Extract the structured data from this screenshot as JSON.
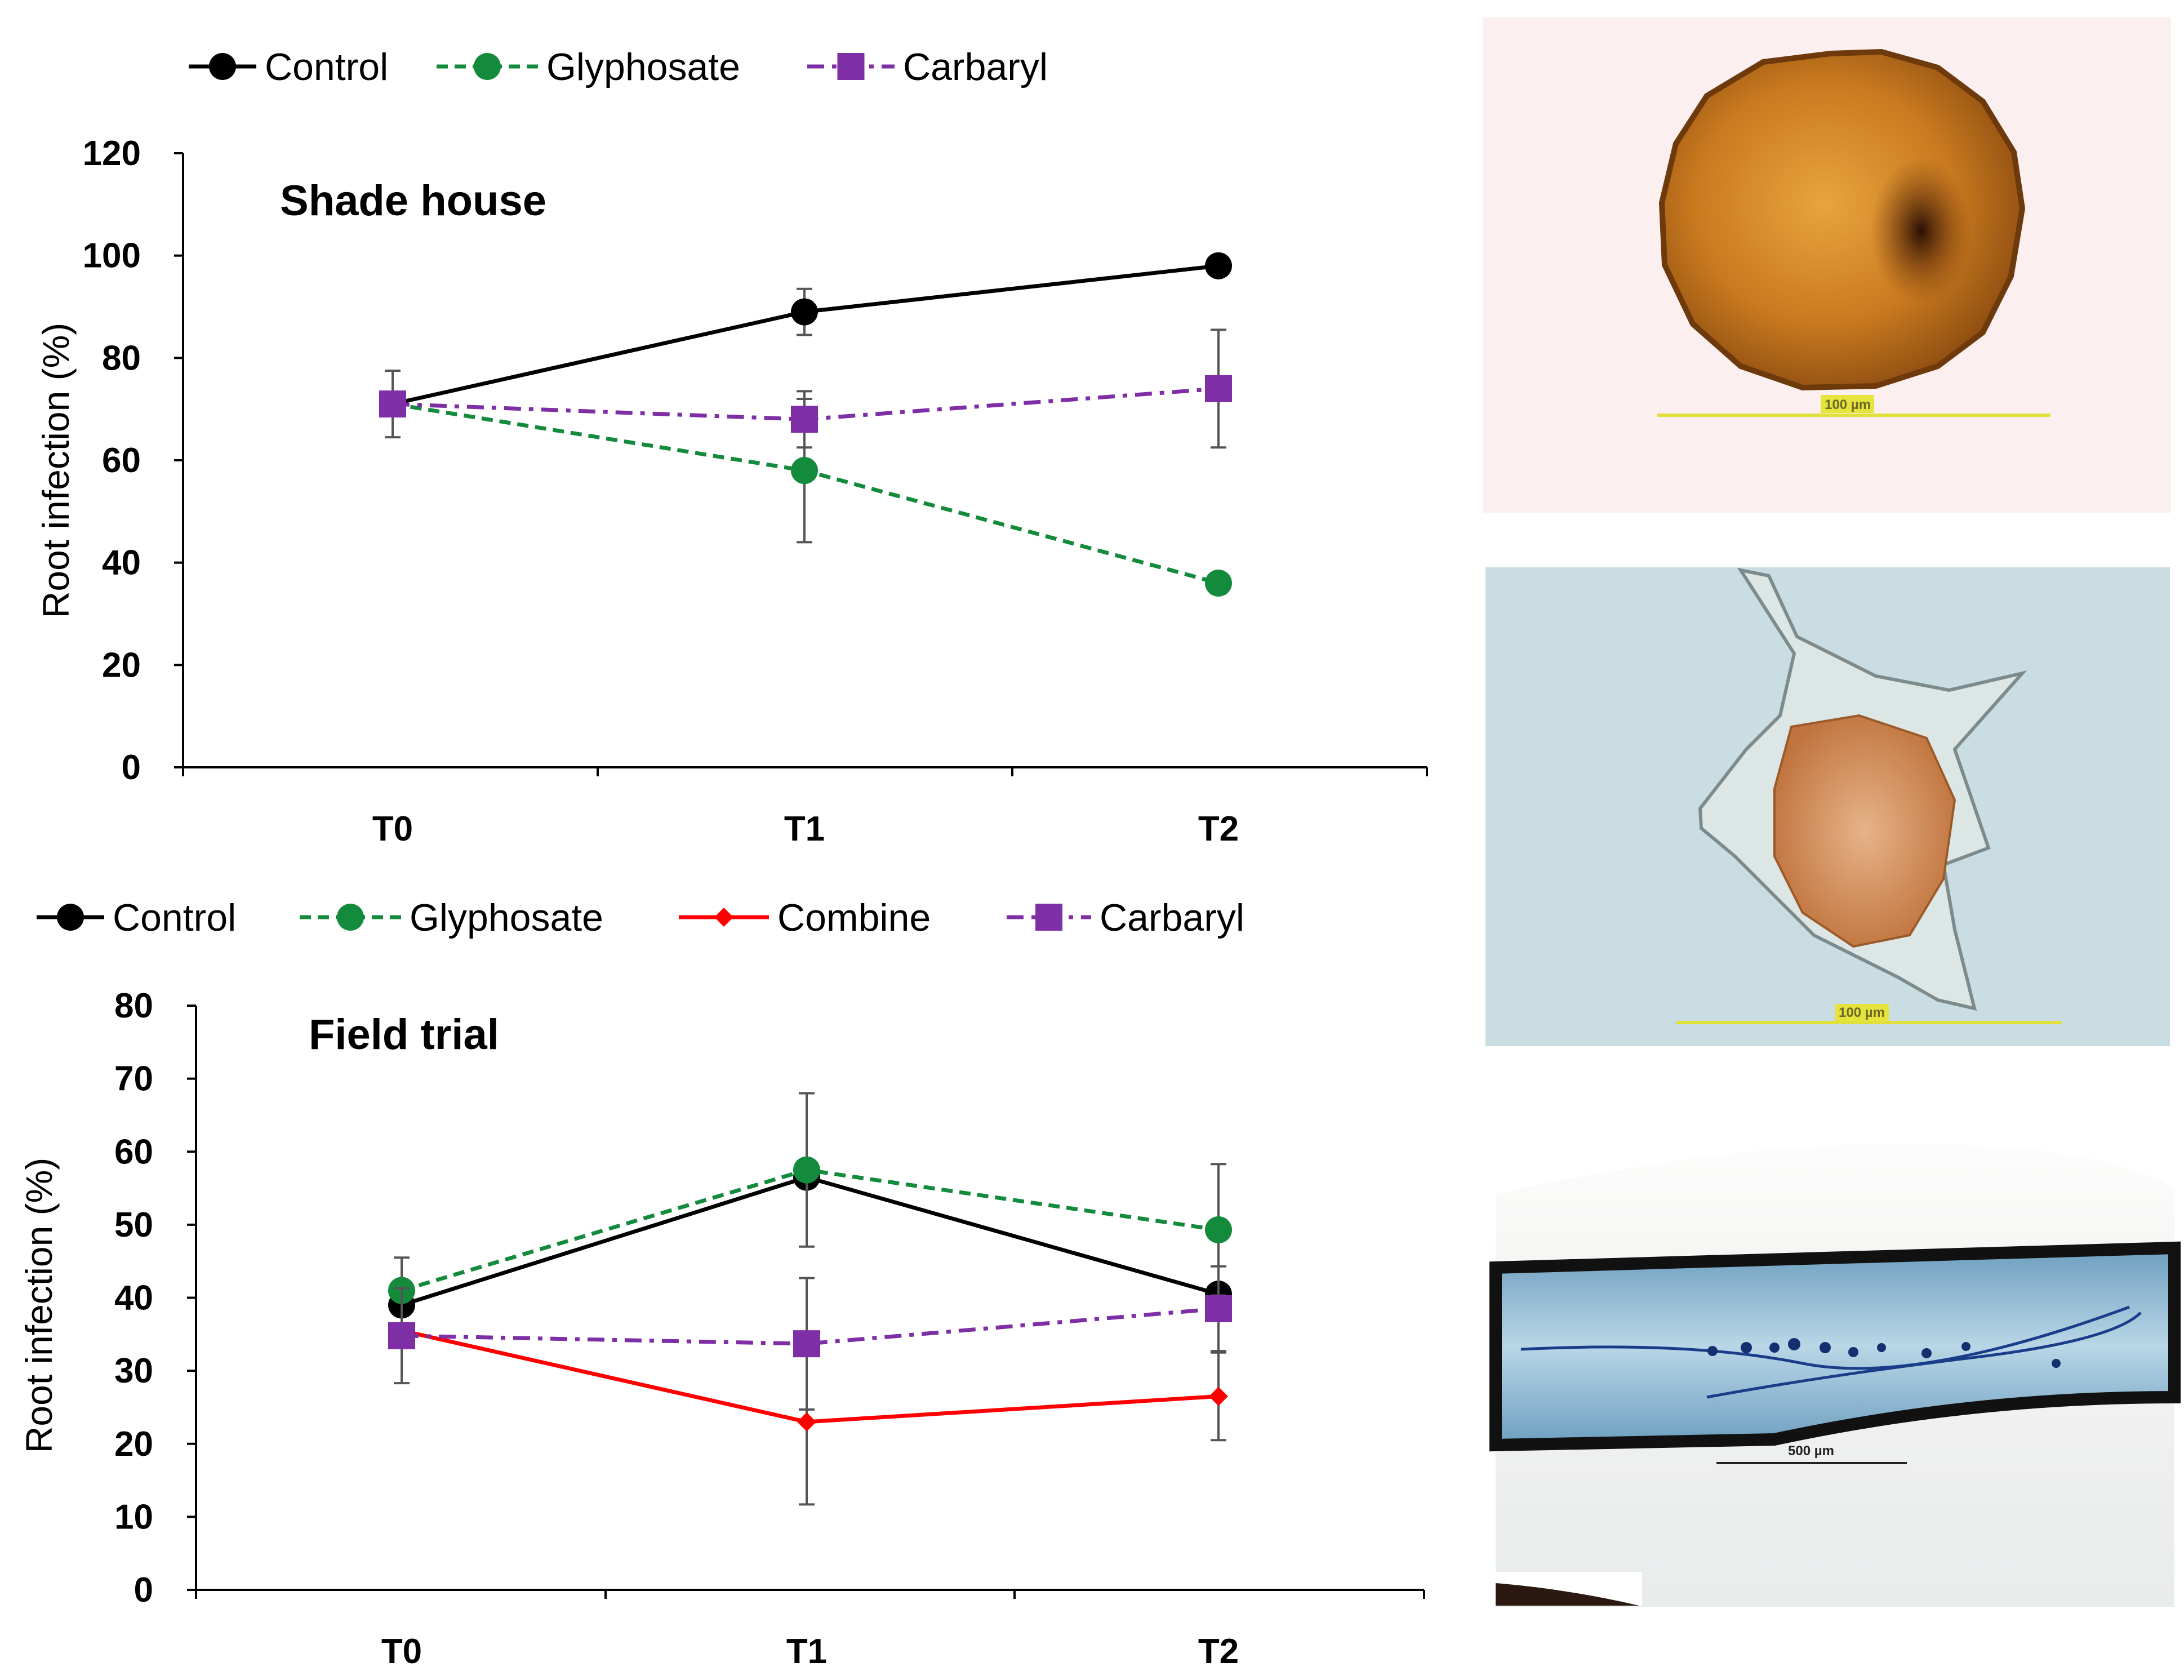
{
  "chart_data": [
    {
      "type": "line",
      "title": "Shade house",
      "ylabel": "Root infection (%)",
      "xlabel": "",
      "categories": [
        "T0",
        "T1",
        "T2"
      ],
      "ylim": [
        0,
        120
      ],
      "yticks": [
        0,
        20,
        40,
        60,
        80,
        100,
        120
      ],
      "legend": [
        "Control",
        "Glyphosate",
        "Carbaryl"
      ],
      "series": [
        {
          "name": "Control",
          "color": "#000000",
          "dash": "solid",
          "marker": "circle",
          "values": [
            71,
            89,
            98
          ],
          "errors": [
            null,
            4.5,
            null
          ]
        },
        {
          "name": "Glyphosate",
          "color": "#138a3c",
          "dash": "dashed",
          "marker": "circle",
          "values": [
            71,
            58,
            36
          ],
          "errors": [
            null,
            14,
            null
          ]
        },
        {
          "name": "Carbaryl",
          "color": "#7e2fa6",
          "dash": "dashdot",
          "marker": "square",
          "values": [
            71,
            68,
            74
          ],
          "errors": [
            6.5,
            5.5,
            11.5
          ]
        }
      ]
    },
    {
      "type": "line",
      "title": "Field trial",
      "ylabel": "Root infection (%)",
      "xlabel": "",
      "categories": [
        "T0",
        "T1",
        "T2"
      ],
      "ylim": [
        0,
        80
      ],
      "yticks": [
        0,
        10,
        20,
        30,
        40,
        50,
        60,
        70,
        80
      ],
      "legend": [
        "Control",
        "Glyphosate",
        "Combine",
        "Carbaryl"
      ],
      "series": [
        {
          "name": "Control",
          "color": "#000000",
          "dash": "solid",
          "marker": "circle",
          "values": [
            39,
            56.5,
            40.5
          ],
          "errors": [
            null,
            null,
            null
          ]
        },
        {
          "name": "Glyphosate",
          "color": "#138a3c",
          "dash": "dashed",
          "marker": "circle",
          "values": [
            41,
            57.5,
            49.3
          ],
          "errors": [
            4.5,
            10.5,
            9
          ]
        },
        {
          "name": "Combine",
          "color": "#ff0000",
          "dash": "solid",
          "marker": "diamond",
          "values": [
            35.5,
            23,
            26.5
          ],
          "errors": [
            null,
            11.3,
            6
          ]
        },
        {
          "name": "Carbaryl",
          "color": "#7e2fa6",
          "dash": "dashdot",
          "marker": "square",
          "values": [
            34.8,
            33.7,
            38.5
          ],
          "errors": [
            6.5,
            9,
            5.8
          ]
        }
      ]
    }
  ],
  "micrographs": [
    {
      "name": "spore",
      "scale_label": "100 µm"
    },
    {
      "name": "nematode",
      "scale_label": "100 µm"
    },
    {
      "name": "root",
      "scale_label": "500 µm"
    }
  ],
  "colors": {
    "control": "#000000",
    "glyphosate": "#138a3c",
    "carbaryl": "#7e2fa6",
    "combine": "#ff0000"
  }
}
